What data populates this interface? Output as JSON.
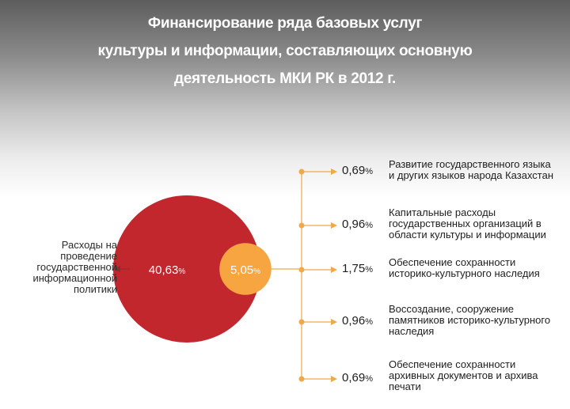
{
  "title_lines": [
    "Финансирование ряда базовых услуг",
    "культуры и информации, составляющих основную",
    "деятельность МКИ РК в 2012 г."
  ],
  "colors": {
    "big_circle": "#c1272d",
    "small_circle": "#f7a541",
    "connector": "#f0a848",
    "arrow": "#8a2a2a",
    "label_text": "#1e1e1e"
  },
  "chart_data": {
    "type": "bubble",
    "title": "Финансирование ряда базовых услуг культуры и информации, составляющих основную деятельность МКИ РК в 2012 г.",
    "bubbles": [
      {
        "value": 40.63,
        "display": "40,63",
        "unit": "%",
        "label": "Расходы на проведение государственной информационной политики"
      },
      {
        "value": 5.05,
        "display": "5,05",
        "unit": "%",
        "label": ""
      }
    ],
    "breakdown": [
      {
        "value": 0.69,
        "display": "0,69",
        "unit": "%",
        "label_lines": [
          "Развитие государственного языка",
          "и других языков народа Казахстан"
        ]
      },
      {
        "value": 0.96,
        "display": "0,96",
        "unit": "%",
        "label_lines": [
          "Капитальные расходы",
          "государственных организаций в",
          "области культуры и информации"
        ]
      },
      {
        "value": 1.75,
        "display": "1,75",
        "unit": "%",
        "label_lines": [
          "Обеспечение сохранности",
          "историко-культурного наследия"
        ]
      },
      {
        "value": 0.96,
        "display": "0,96",
        "unit": "%",
        "label_lines": [
          "Воссоздание, сооружение",
          "памятников историко-культурного",
          "наследия"
        ]
      },
      {
        "value": 0.69,
        "display": "0,69",
        "unit": "%",
        "label_lines": [
          "Обеспечение сохранности",
          "архивных документов и архива",
          "печати"
        ]
      }
    ]
  },
  "left_label_lines": [
    "Расходы на",
    "проведение",
    "государственной",
    "информационной",
    "политики"
  ]
}
